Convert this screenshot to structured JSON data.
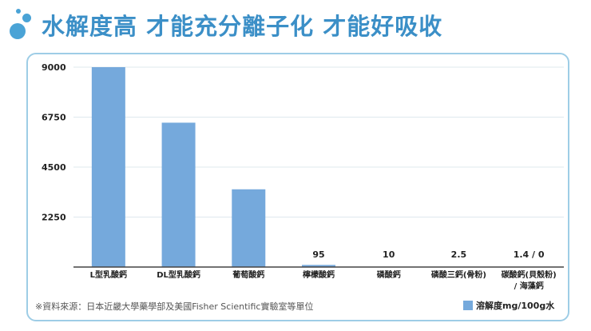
{
  "header": {
    "title": "水解度高  才能充分離子化  才能好吸收",
    "icon": "bubbles-icon"
  },
  "colors": {
    "bar": "#75a9dc",
    "title": "#3b8fc7",
    "panel_border": "#9ecde6"
  },
  "source_note": "※資料來源：日本近畿大學藥學部及美國Fisher Scientific實驗室等單位",
  "chart_data": {
    "type": "bar",
    "title": "",
    "xlabel": "",
    "ylabel": "",
    "ylim": [
      0,
      9000
    ],
    "y_ticks": [
      "9000",
      "6750",
      "4500",
      "2250"
    ],
    "y_tick_values": [
      9000,
      6750,
      4500,
      2250
    ],
    "grid": true,
    "legend": {
      "label": "溶解度mg/100g水",
      "placement": "bottom-right"
    },
    "categories": [
      "L型乳酸鈣",
      "DL型乳酸鈣",
      "葡萄酸鈣",
      "檸檬酸鈣",
      "磷酸鈣",
      "磷酸三鈣(骨粉)",
      "碳酸鈣(貝殼粉)\n/ 海藻鈣"
    ],
    "values": [
      9000,
      6500,
      3500,
      95,
      10,
      2.5,
      1.4
    ],
    "value_labels": [
      "",
      "",
      "",
      "95",
      "10",
      "2.5",
      "1.4 / 0"
    ]
  }
}
